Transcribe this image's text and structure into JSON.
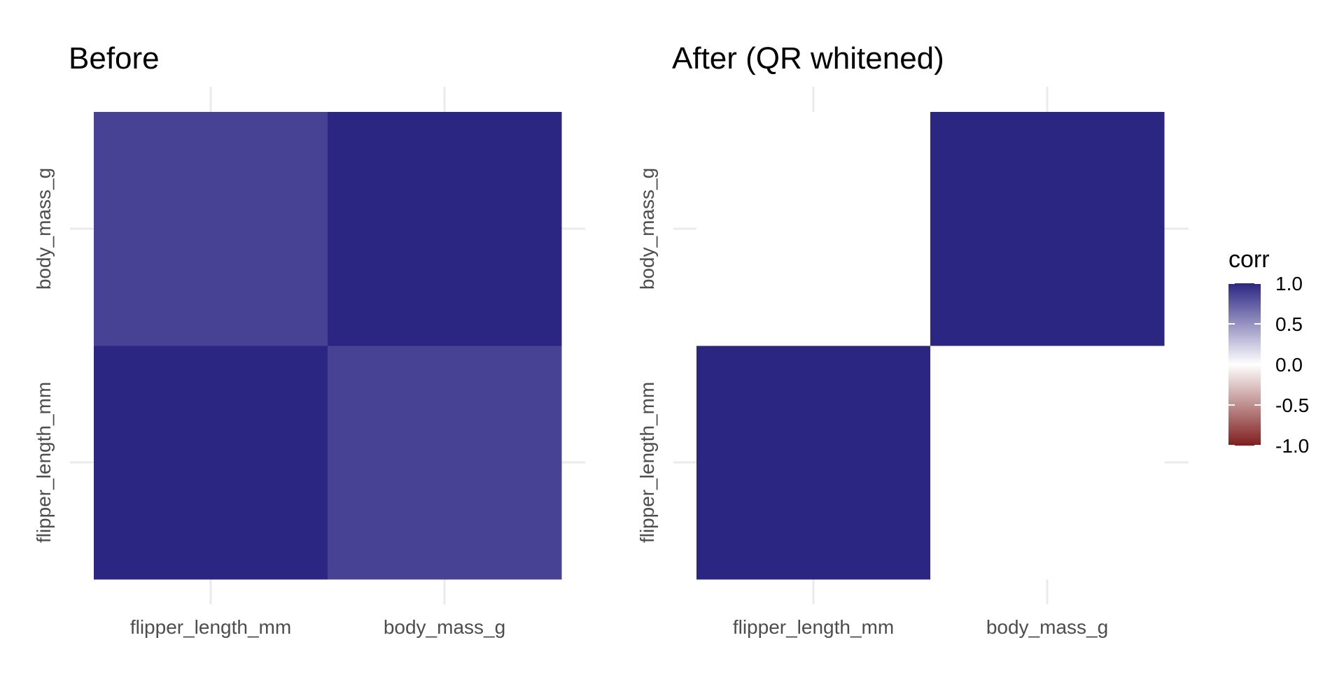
{
  "chart_data": [
    {
      "type": "heatmap",
      "title": "Before",
      "x_categories": [
        "flipper_length_mm",
        "body_mass_g"
      ],
      "y_categories": [
        "flipper_length_mm",
        "body_mass_g"
      ],
      "cells": [
        {
          "x": "flipper_length_mm",
          "y": "flipper_length_mm",
          "value": 1.0
        },
        {
          "x": "body_mass_g",
          "y": "flipper_length_mm",
          "value": 0.87
        },
        {
          "x": "flipper_length_mm",
          "y": "body_mass_g",
          "value": 0.87
        },
        {
          "x": "body_mass_g",
          "y": "body_mass_g",
          "value": 1.0
        }
      ],
      "grid": true
    },
    {
      "type": "heatmap",
      "title": "After (QR whitened)",
      "x_categories": [
        "flipper_length_mm",
        "body_mass_g"
      ],
      "y_categories": [
        "flipper_length_mm",
        "body_mass_g"
      ],
      "cells": [
        {
          "x": "flipper_length_mm",
          "y": "flipper_length_mm",
          "value": 1.0
        },
        {
          "x": "body_mass_g",
          "y": "flipper_length_mm",
          "value": 0.0
        },
        {
          "x": "flipper_length_mm",
          "y": "body_mass_g",
          "value": 0.0
        },
        {
          "x": "body_mass_g",
          "y": "body_mass_g",
          "value": 1.0
        }
      ],
      "grid": true
    }
  ],
  "legend": {
    "title": "corr",
    "ticks": [
      "1.0",
      "0.5",
      "0.0",
      "-0.5",
      "-1.0"
    ],
    "tick_values": [
      1.0,
      0.5,
      0.0,
      -0.5,
      -1.0
    ],
    "range": [
      -1.0,
      1.0
    ],
    "placement": "right",
    "colors": {
      "low": "#7f1d1d",
      "mid": "#ffffff",
      "high": "#2c2683"
    }
  }
}
